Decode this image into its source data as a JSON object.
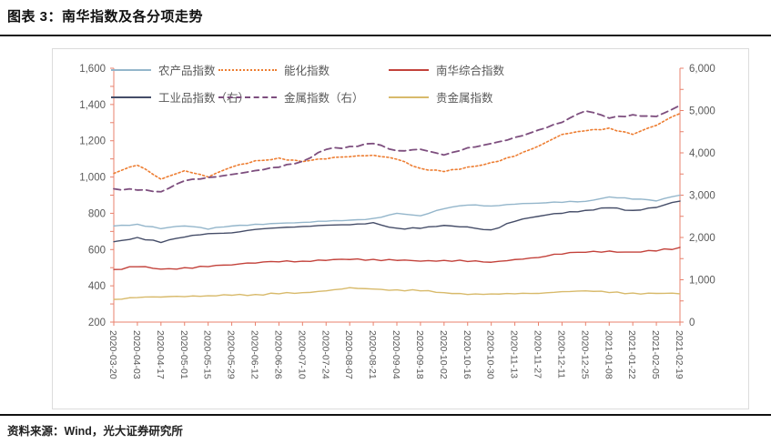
{
  "header": {
    "title": "图表 3：南华指数及各分项走势"
  },
  "footer": {
    "source": "资料来源：Wind，光大证券研究所"
  },
  "colors": {
    "axis": "#e8806c",
    "tick_label": "#595959",
    "panel_border": "#dcdcdc",
    "rule": "#1c1c1c"
  },
  "chart_data": {
    "type": "line",
    "title": "南华指数及各分项走势",
    "grid": "off",
    "legend_position": "top",
    "x_labels": [
      "2020-03-20",
      "2020-04-03",
      "2020-04-17",
      "2020-05-01",
      "2020-05-15",
      "2020-05-29",
      "2020-06-12",
      "2020-06-26",
      "2020-07-10",
      "2020-07-24",
      "2020-08-07",
      "2020-08-21",
      "2020-09-04",
      "2020-09-18",
      "2020-10-02",
      "2020-10-16",
      "2020-10-30",
      "2020-11-13",
      "2020-11-27",
      "2020-12-11",
      "2020-12-25",
      "2021-01-08",
      "2021-01-22",
      "2021-02-05",
      "2021-02-19"
    ],
    "left_axis": {
      "min": 200,
      "max": 1600,
      "major_step": 200,
      "minor_step": 100,
      "tick_values": [
        200,
        400,
        600,
        800,
        1000,
        1200,
        1400,
        1600
      ],
      "tick_labels": [
        "200",
        "400",
        "600",
        "800",
        "1,000",
        "1,200",
        "1,400",
        "1,600"
      ]
    },
    "right_axis": {
      "min": 0,
      "max": 6000,
      "major_step": 1000,
      "minor_step": 500,
      "tick_values": [
        0,
        1000,
        2000,
        3000,
        4000,
        5000,
        6000
      ],
      "tick_labels": [
        "0",
        "1,000",
        "2,000",
        "3,000",
        "4,000",
        "5,000",
        "6,000"
      ]
    },
    "series": [
      {
        "key": "agriculture",
        "name": "农产品指数",
        "axis": "left",
        "style": "solid",
        "color": "#94b6cb",
        "values": [
          730,
          740,
          715,
          730,
          712,
          730,
          740,
          745,
          750,
          756,
          762,
          772,
          800,
          786,
          825,
          845,
          840,
          850,
          856,
          860,
          866,
          890,
          878,
          868,
          900
        ]
      },
      {
        "key": "energy-chemical",
        "name": "能化指数",
        "axis": "left",
        "style": "dotted",
        "color": "#ed7d31",
        "values": [
          1020,
          1065,
          988,
          1035,
          1000,
          1055,
          1090,
          1105,
          1085,
          1100,
          1112,
          1120,
          1098,
          1048,
          1030,
          1055,
          1080,
          1115,
          1170,
          1235,
          1255,
          1270,
          1235,
          1285,
          1350
        ]
      },
      {
        "key": "composite",
        "name": "南华综合指数",
        "axis": "left",
        "style": "solid",
        "color": "#c3423b",
        "values": [
          490,
          505,
          492,
          500,
          506,
          515,
          525,
          532,
          536,
          540,
          545,
          546,
          540,
          536,
          540,
          534,
          530,
          545,
          556,
          575,
          585,
          592,
          586,
          592,
          612
        ]
      },
      {
        "key": "industrial",
        "name": "工业品指数（右）",
        "axis": "right",
        "style": "solid",
        "color": "#454d68",
        "values": [
          1900,
          2000,
          1880,
          2010,
          2090,
          2110,
          2190,
          2230,
          2260,
          2290,
          2300,
          2350,
          2220,
          2215,
          2285,
          2250,
          2180,
          2380,
          2500,
          2570,
          2640,
          2700,
          2640,
          2710,
          2860
        ]
      },
      {
        "key": "metals",
        "name": "金属指数（右）",
        "axis": "right",
        "style": "dashed",
        "color": "#7d4e7e",
        "values": [
          3150,
          3120,
          3080,
          3340,
          3420,
          3490,
          3580,
          3660,
          3800,
          4080,
          4150,
          4220,
          4050,
          4085,
          3950,
          4120,
          4220,
          4365,
          4540,
          4720,
          4990,
          4820,
          4900,
          4860,
          5120
        ]
      },
      {
        "key": "precious-metals",
        "name": "贵金属指数",
        "axis": "left",
        "style": "solid",
        "color": "#d8ba6b",
        "values": [
          325,
          335,
          338,
          340,
          345,
          348,
          352,
          356,
          362,
          372,
          390,
          382,
          378,
          372,
          362,
          352,
          355,
          356,
          358,
          368,
          372,
          363,
          360,
          358,
          356
        ]
      }
    ]
  }
}
